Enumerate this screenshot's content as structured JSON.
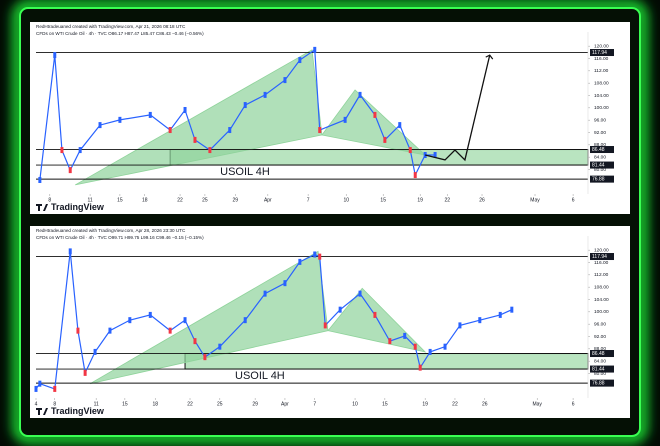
{
  "chart_data": [
    {
      "type": "line",
      "header_author": "RedHtradeuaned created with TradingView.com, Apr 21, 2026 08:18 UTC",
      "header_symbol": "CFDs on WTI Crude Oil · 4h · TVC  O86.17 H87.47 L85.47 C86.43 −0.46 (−0.56%)",
      "x": [
        0.7,
        3.4,
        4.7,
        6.2,
        8.0,
        11.6,
        15.2,
        20.7,
        24.3,
        27.0,
        28.8,
        31.5,
        35.1,
        37.9,
        41.5,
        45.1,
        47.8,
        50.5,
        51.4,
        56.0,
        58.7,
        61.4,
        63.2,
        65.9,
        67.8,
        68.7,
        70.5,
        72.3
      ],
      "values": [
        76.6,
        117.1,
        86.3,
        79.8,
        86.3,
        94.4,
        96.1,
        97.7,
        92.8,
        99.3,
        89.6,
        86.3,
        92.8,
        100.9,
        104.2,
        109.0,
        115.5,
        118.8,
        92.8,
        96.1,
        104.2,
        97.7,
        89.6,
        94.4,
        86.3,
        78.2,
        84.7,
        84.7
      ],
      "color": "#2962ff",
      "down_color": "#f23645",
      "xlim": [
        0,
        100
      ],
      "xticks": [
        {
          "value": 2.5,
          "label": "8"
        },
        {
          "value": 9.8,
          "label": "11"
        },
        {
          "value": 15.2,
          "label": "15"
        },
        {
          "value": 19.7,
          "label": "18"
        },
        {
          "value": 26.1,
          "label": "22"
        },
        {
          "value": 30.6,
          "label": "25"
        },
        {
          "value": 36.1,
          "label": "29"
        },
        {
          "value": 42.0,
          "label": "Apr"
        },
        {
          "value": 49.3,
          "label": "7"
        },
        {
          "value": 56.2,
          "label": "10"
        },
        {
          "value": 62.9,
          "label": "15"
        },
        {
          "value": 69.6,
          "label": "19"
        },
        {
          "value": 74.5,
          "label": "22"
        },
        {
          "value": 80.8,
          "label": "26"
        },
        {
          "value": 90.4,
          "label": "May"
        },
        {
          "value": 97.3,
          "label": "6"
        }
      ],
      "ylim": [
        74,
        122
      ],
      "yticks": [
        {
          "value": 80,
          "label": "80.00"
        },
        {
          "value": 84,
          "label": "84.00"
        },
        {
          "value": 88,
          "label": "88.00"
        },
        {
          "value": 92,
          "label": "92.00"
        },
        {
          "value": 96,
          "label": "96.00"
        },
        {
          "value": 100,
          "label": "100.00"
        },
        {
          "value": 104,
          "label": "104.00"
        },
        {
          "value": 108,
          "label": "108.00"
        },
        {
          "value": 112,
          "label": "112.00"
        },
        {
          "value": 116,
          "label": "116.00"
        },
        {
          "value": 120,
          "label": "120.00"
        }
      ],
      "levels": [
        117.94,
        86.48,
        81.44,
        76.88
      ],
      "zone": [
        86.48,
        81.44
      ],
      "zone_x": [
        24.3,
        100
      ],
      "zone_label": "USOIL 4H",
      "zone_color": "#b9e4c0",
      "pattern_x": [
        7.1,
        50.0,
        51.8,
        57.8,
        70.5
      ],
      "pattern_y": [
        75.0,
        118.8,
        91.2,
        105.8,
        84.7
      ],
      "pattern_color": "#8fd39b",
      "projection_x": [
        70.5,
        74.1,
        75.9,
        77.7,
        82.2
      ],
      "projection_y": [
        84.7,
        83.1,
        86.3,
        83.1,
        117.1
      ],
      "logo": "TradingView"
    },
    {
      "type": "line",
      "header_author": "RedHtradeuaned created with TradingView.com, Apr 28, 2026 23:30 UTC",
      "header_symbol": "CFDs on WTI Crude Oil · 4h · TVC  O99.71 H99.75 L99.16 C99.46 −0.15 (−0.15%)",
      "x": [
        0,
        0.7,
        3.4,
        6.2,
        7.6,
        8.9,
        10.7,
        13.4,
        17.0,
        20.7,
        24.3,
        27.0,
        28.8,
        30.6,
        33.3,
        37.9,
        41.5,
        45.1,
        47.8,
        50.5,
        51.4,
        52.4,
        55.1,
        58.7,
        61.4,
        64.1,
        66.8,
        68.7,
        69.6,
        71.4,
        74.1,
        76.8,
        80.4,
        84.1,
        86.2
      ],
      "values": [
        75.0,
        76.7,
        75.0,
        119.6,
        93.9,
        80.2,
        87.0,
        93.9,
        97.3,
        99.0,
        93.9,
        97.3,
        90.5,
        85.3,
        88.7,
        97.3,
        105.9,
        109.3,
        116.2,
        118.6,
        117.9,
        95.6,
        100.7,
        105.9,
        99.0,
        90.5,
        92.2,
        88.7,
        81.9,
        87.0,
        88.7,
        95.6,
        97.3,
        99.0,
        100.7
      ],
      "color": "#2962ff",
      "down_color": "#f23645",
      "xlim": [
        0,
        100
      ],
      "xticks": [
        {
          "value": 0,
          "label": "4"
        },
        {
          "value": 3.4,
          "label": "8"
        },
        {
          "value": 10.9,
          "label": "11"
        },
        {
          "value": 16.1,
          "label": "15"
        },
        {
          "value": 21.6,
          "label": "18"
        },
        {
          "value": 27.9,
          "label": "22"
        },
        {
          "value": 33.3,
          "label": "25"
        },
        {
          "value": 39.7,
          "label": "29"
        },
        {
          "value": 45.1,
          "label": "Apr"
        },
        {
          "value": 50.5,
          "label": "7"
        },
        {
          "value": 57.8,
          "label": "10"
        },
        {
          "value": 63.2,
          "label": "15"
        },
        {
          "value": 70.5,
          "label": "19"
        },
        {
          "value": 75.9,
          "label": "22"
        },
        {
          "value": 81.3,
          "label": "26"
        },
        {
          "value": 90.8,
          "label": "May"
        },
        {
          "value": 97.3,
          "label": "6"
        }
      ],
      "ylim": [
        74,
        122
      ],
      "yticks": [
        {
          "value": 80,
          "label": "80.00"
        },
        {
          "value": 84,
          "label": "84.00"
        },
        {
          "value": 88,
          "label": "88.00"
        },
        {
          "value": 92,
          "label": "92.00"
        },
        {
          "value": 96,
          "label": "96.00"
        },
        {
          "value": 100,
          "label": "100.00"
        },
        {
          "value": 104,
          "label": "104.00"
        },
        {
          "value": 108,
          "label": "108.00"
        },
        {
          "value": 112,
          "label": "112.00"
        },
        {
          "value": 116,
          "label": "116.00"
        },
        {
          "value": 120,
          "label": "120.00"
        }
      ],
      "levels": [
        117.94,
        86.48,
        81.44,
        76.88
      ],
      "zone": [
        86.48,
        81.44
      ],
      "zone_x": [
        27.0,
        100
      ],
      "zone_label": "USOIL 4H",
      "zone_color": "#b9e4c0",
      "pattern_x": [
        9.8,
        51.1,
        52.9,
        59.1,
        70.5
      ],
      "pattern_y": [
        76.7,
        119.6,
        93.9,
        107.6,
        87.0
      ],
      "pattern_color": "#8fd39b",
      "logo": "TradingView"
    }
  ]
}
